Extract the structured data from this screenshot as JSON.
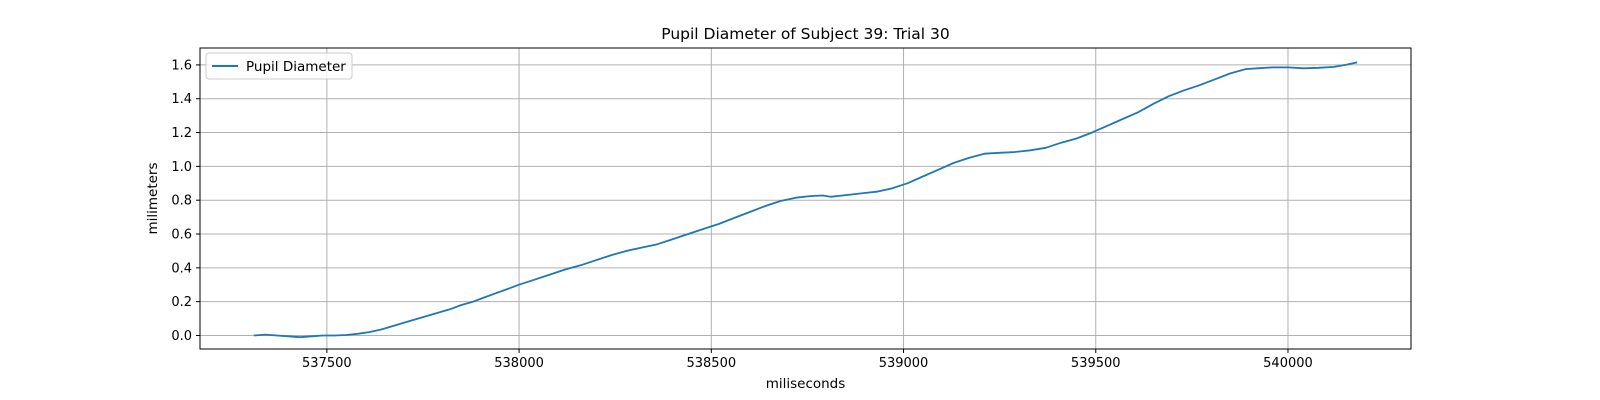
{
  "chart_data": {
    "type": "line",
    "title": "Pupil Diameter of Subject 39: Trial 30",
    "xlabel": "miliseconds",
    "ylabel": "milimeters",
    "xlim": [
      537170,
      540320
    ],
    "ylim": [
      -0.08,
      1.7
    ],
    "xticks": [
      537500,
      538000,
      538500,
      539000,
      539500,
      540000
    ],
    "yticks": [
      0.0,
      0.2,
      0.4,
      0.6,
      0.8,
      1.0,
      1.2,
      1.4,
      1.6
    ],
    "ytick_labels": [
      "0.0",
      "0.2",
      "0.4",
      "0.6",
      "0.8",
      "1.0",
      "1.2",
      "1.4",
      "1.6"
    ],
    "grid": true,
    "legend_position": "upper-left",
    "colors": {
      "series": "#1f77b4",
      "grid": "#b0b0b0",
      "axes": "#000000"
    },
    "series": [
      {
        "name": "Pupil Diameter",
        "x": [
          537310,
          537340,
          537370,
          537400,
          537430,
          537460,
          537490,
          537520,
          537550,
          537580,
          537610,
          537640,
          537670,
          537700,
          537730,
          537760,
          537790,
          537820,
          537850,
          537880,
          537910,
          537940,
          537970,
          538000,
          538040,
          538080,
          538120,
          538160,
          538200,
          538240,
          538280,
          538320,
          538360,
          538400,
          538440,
          538480,
          538520,
          538560,
          538600,
          538640,
          538680,
          538720,
          538760,
          538790,
          538810,
          538850,
          538890,
          538930,
          538970,
          539010,
          539050,
          539090,
          539130,
          539170,
          539210,
          539250,
          539290,
          539330,
          539370,
          539410,
          539450,
          539490,
          539530,
          539570,
          539610,
          539650,
          539690,
          539730,
          539770,
          539810,
          539850,
          539890,
          539920,
          539960,
          540000,
          540040,
          540080,
          540120,
          540150,
          540180
        ],
        "values": [
          0.0,
          0.005,
          0.0,
          -0.005,
          -0.01,
          -0.005,
          0.0,
          0.0,
          0.003,
          0.01,
          0.02,
          0.035,
          0.055,
          0.075,
          0.095,
          0.115,
          0.135,
          0.155,
          0.18,
          0.2,
          0.225,
          0.25,
          0.275,
          0.3,
          0.33,
          0.36,
          0.39,
          0.415,
          0.445,
          0.475,
          0.5,
          0.52,
          0.54,
          0.57,
          0.6,
          0.63,
          0.66,
          0.695,
          0.73,
          0.765,
          0.795,
          0.815,
          0.825,
          0.828,
          0.82,
          0.83,
          0.84,
          0.85,
          0.87,
          0.9,
          0.94,
          0.98,
          1.02,
          1.05,
          1.075,
          1.08,
          1.085,
          1.095,
          1.11,
          1.14,
          1.165,
          1.2,
          1.24,
          1.28,
          1.32,
          1.37,
          1.415,
          1.45,
          1.48,
          1.515,
          1.55,
          1.575,
          1.58,
          1.585,
          1.585,
          1.58,
          1.583,
          1.588,
          1.6,
          1.615
        ]
      }
    ]
  }
}
